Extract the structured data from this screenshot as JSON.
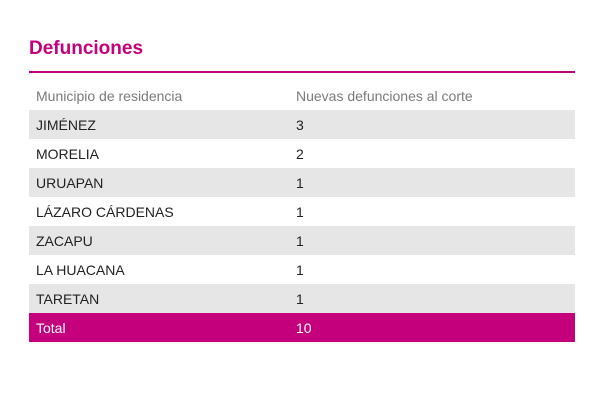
{
  "title": "Defunciones",
  "colors": {
    "accent": "#c4007d",
    "stripe": "#e6e6e6"
  },
  "table": {
    "headers": [
      "Municipio de residencia",
      "Nuevas defunciones al corte"
    ],
    "rows": [
      [
        "JIMÉNEZ",
        "3"
      ],
      [
        "MORELIA",
        "2"
      ],
      [
        "URUAPAN",
        "1"
      ],
      [
        "LÁZARO CÁRDENAS",
        "1"
      ],
      [
        "ZACAPU",
        "1"
      ],
      [
        "LA HUACANA",
        "1"
      ],
      [
        "TARETAN",
        "1"
      ]
    ],
    "total": [
      "Total",
      "10"
    ]
  }
}
